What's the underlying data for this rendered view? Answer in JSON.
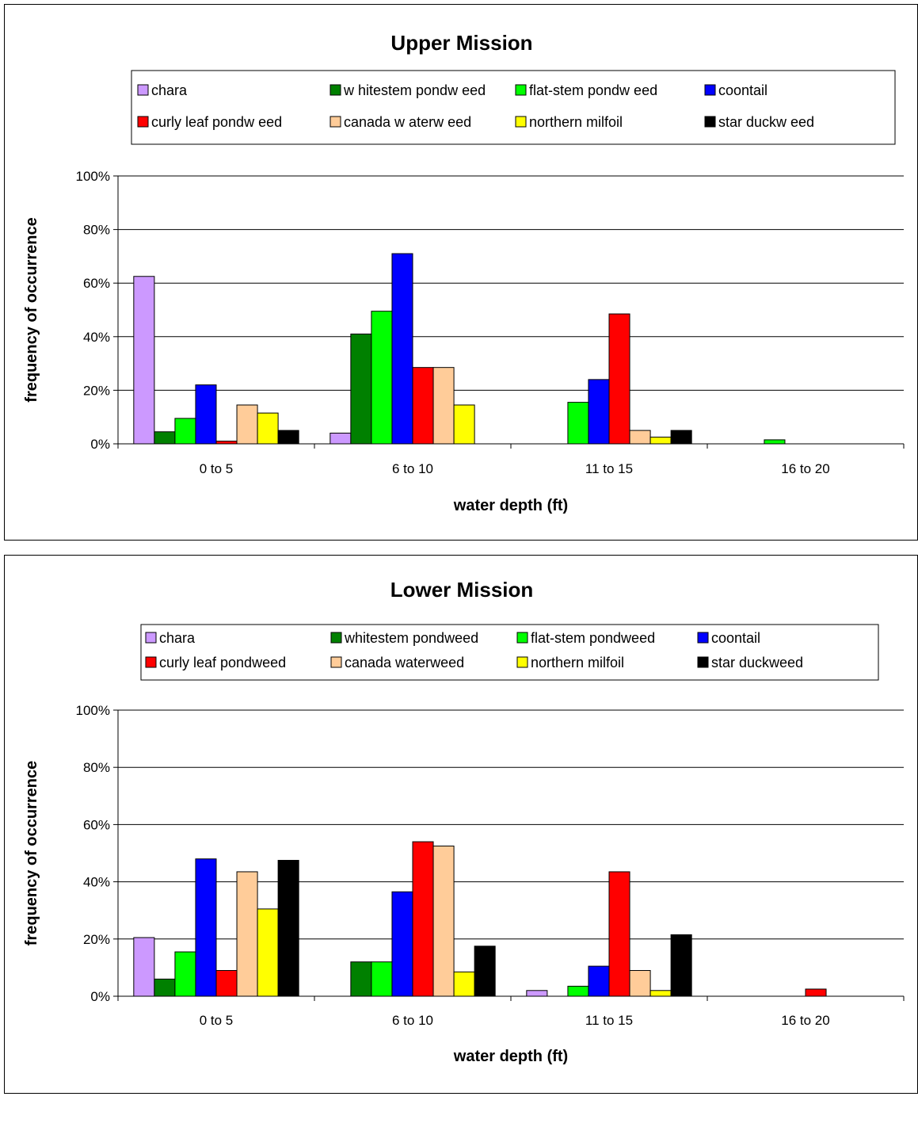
{
  "chart_data": [
    {
      "type": "bar",
      "title": "Upper Mission",
      "xlabel": "water depth (ft)",
      "ylabel": "frequency of occurrence",
      "ylim": [
        0,
        100
      ],
      "y_ticks": [
        "0%",
        "20%",
        "40%",
        "60%",
        "80%",
        "100%"
      ],
      "grid": true,
      "legend_position": "top",
      "categories": [
        "0 to 5",
        "6 to 10",
        "11 to 15",
        "16 to 20"
      ],
      "series": [
        {
          "name": "chara",
          "color": "#cc99ff",
          "values": [
            62.5,
            4,
            0,
            0
          ]
        },
        {
          "name": "w hitestem pondw eed",
          "color": "#008000",
          "values": [
            4.5,
            41,
            0,
            0
          ]
        },
        {
          "name": "flat-stem pondw eed",
          "color": "#00ff00",
          "values": [
            9.5,
            49.5,
            15.5,
            1.5
          ]
        },
        {
          "name": "coontail",
          "color": "#0000ff",
          "values": [
            22,
            71,
            24,
            0
          ]
        },
        {
          "name": "curly leaf pondw eed",
          "color": "#ff0000",
          "values": [
            1,
            28.5,
            48.5,
            0
          ]
        },
        {
          "name": "canada w aterw eed",
          "color": "#ffcc99",
          "values": [
            14.5,
            28.5,
            5,
            0
          ]
        },
        {
          "name": "northern milfoil",
          "color": "#ffff00",
          "values": [
            11.5,
            14.5,
            2.5,
            0
          ]
        },
        {
          "name": "star duckw eed",
          "color": "#000000",
          "values": [
            5,
            0,
            5,
            0
          ]
        }
      ]
    },
    {
      "type": "bar",
      "title": "Lower Mission",
      "xlabel": "water depth (ft)",
      "ylabel": "frequency of occurrence",
      "ylim": [
        0,
        100
      ],
      "y_ticks": [
        "0%",
        "20%",
        "40%",
        "60%",
        "80%",
        "100%"
      ],
      "grid": true,
      "legend_position": "top",
      "categories": [
        "0 to 5",
        "6 to 10",
        "11 to 15",
        "16 to 20"
      ],
      "series": [
        {
          "name": "chara",
          "color": "#cc99ff",
          "values": [
            20.5,
            0,
            2,
            0
          ]
        },
        {
          "name": "whitestem pondweed",
          "color": "#008000",
          "values": [
            6,
            12,
            0,
            0
          ]
        },
        {
          "name": "flat-stem pondweed",
          "color": "#00ff00",
          "values": [
            15.5,
            12,
            3.5,
            0
          ]
        },
        {
          "name": "coontail",
          "color": "#0000ff",
          "values": [
            48,
            36.5,
            10.5,
            0
          ]
        },
        {
          "name": "curly leaf pondweed",
          "color": "#ff0000",
          "values": [
            9,
            54,
            43.5,
            2.5
          ]
        },
        {
          "name": "canada waterweed",
          "color": "#ffcc99",
          "values": [
            43.5,
            52.5,
            9,
            0
          ]
        },
        {
          "name": "northern milfoil",
          "color": "#ffff00",
          "values": [
            30.5,
            8.5,
            2,
            0
          ]
        },
        {
          "name": "star duckweed",
          "color": "#000000",
          "values": [
            47.5,
            17.5,
            21.5,
            0
          ]
        }
      ]
    }
  ]
}
